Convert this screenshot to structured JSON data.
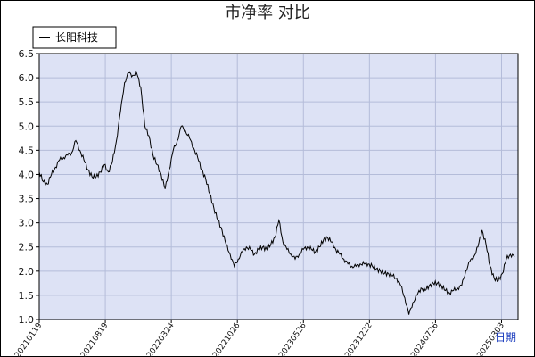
{
  "chart_data": {
    "type": "line",
    "title": "市净率  对比",
    "xlabel": "日期",
    "ylabel": "",
    "ylim": [
      1.0,
      6.5
    ],
    "y_ticks": [
      "1.0",
      "1.5",
      "2.0",
      "2.5",
      "3.0",
      "3.5",
      "4.0",
      "4.5",
      "5.0",
      "5.5",
      "6.0",
      "6.5"
    ],
    "x_ticks": [
      "20210119",
      "20210819",
      "20220324",
      "20221026",
      "20230526",
      "20231222",
      "20240726",
      "20250303"
    ],
    "grid": true,
    "legend_position": "top-left",
    "colors": {
      "plot_bg": "#dde2f5",
      "grid": "#b4bcd9",
      "line": "#000000",
      "frame": "#000000"
    },
    "series": [
      {
        "name": "长阳科技",
        "points": [
          [
            0,
            4.05
          ],
          [
            0.01,
            3.85
          ],
          [
            0.02,
            3.8
          ],
          [
            0.03,
            4.0
          ],
          [
            0.04,
            4.15
          ],
          [
            0.05,
            4.3
          ],
          [
            0.06,
            4.35
          ],
          [
            0.07,
            4.4
          ],
          [
            0.08,
            4.45
          ],
          [
            0.09,
            4.7
          ],
          [
            0.1,
            4.5
          ],
          [
            0.11,
            4.3
          ],
          [
            0.12,
            4.1
          ],
          [
            0.13,
            3.95
          ],
          [
            0.14,
            3.95
          ],
          [
            0.15,
            4.05
          ],
          [
            0.16,
            4.2
          ],
          [
            0.17,
            4.05
          ],
          [
            0.18,
            4.25
          ],
          [
            0.19,
            4.7
          ],
          [
            0.2,
            5.3
          ],
          [
            0.21,
            5.9
          ],
          [
            0.22,
            6.1
          ],
          [
            0.23,
            6.05
          ],
          [
            0.24,
            6.1
          ],
          [
            0.25,
            5.8
          ],
          [
            0.26,
            5.0
          ],
          [
            0.27,
            4.8
          ],
          [
            0.28,
            4.4
          ],
          [
            0.29,
            4.2
          ],
          [
            0.3,
            4.0
          ],
          [
            0.31,
            3.7
          ],
          [
            0.32,
            4.1
          ],
          [
            0.33,
            4.5
          ],
          [
            0.34,
            4.7
          ],
          [
            0.35,
            5.0
          ],
          [
            0.36,
            4.9
          ],
          [
            0.37,
            4.75
          ],
          [
            0.38,
            4.55
          ],
          [
            0.39,
            4.35
          ],
          [
            0.4,
            4.1
          ],
          [
            0.41,
            3.9
          ],
          [
            0.42,
            3.6
          ],
          [
            0.43,
            3.3
          ],
          [
            0.44,
            3.05
          ],
          [
            0.45,
            2.85
          ],
          [
            0.46,
            2.55
          ],
          [
            0.47,
            2.35
          ],
          [
            0.48,
            2.1
          ],
          [
            0.49,
            2.25
          ],
          [
            0.5,
            2.4
          ],
          [
            0.51,
            2.5
          ],
          [
            0.52,
            2.45
          ],
          [
            0.53,
            2.35
          ],
          [
            0.54,
            2.45
          ],
          [
            0.55,
            2.5
          ],
          [
            0.56,
            2.45
          ],
          [
            0.57,
            2.55
          ],
          [
            0.58,
            2.7
          ],
          [
            0.59,
            3.05
          ],
          [
            0.6,
            2.6
          ],
          [
            0.61,
            2.45
          ],
          [
            0.62,
            2.35
          ],
          [
            0.63,
            2.25
          ],
          [
            0.64,
            2.35
          ],
          [
            0.65,
            2.45
          ],
          [
            0.66,
            2.5
          ],
          [
            0.67,
            2.45
          ],
          [
            0.68,
            2.4
          ],
          [
            0.69,
            2.5
          ],
          [
            0.7,
            2.65
          ],
          [
            0.71,
            2.7
          ],
          [
            0.72,
            2.6
          ],
          [
            0.73,
            2.45
          ],
          [
            0.74,
            2.35
          ],
          [
            0.75,
            2.25
          ],
          [
            0.76,
            2.15
          ],
          [
            0.77,
            2.1
          ],
          [
            0.78,
            2.1
          ],
          [
            0.79,
            2.15
          ],
          [
            0.8,
            2.15
          ],
          [
            0.81,
            2.15
          ],
          [
            0.82,
            2.1
          ],
          [
            0.83,
            2.05
          ],
          [
            0.84,
            2.0
          ],
          [
            0.85,
            1.95
          ],
          [
            0.86,
            1.95
          ],
          [
            0.87,
            1.9
          ],
          [
            0.88,
            1.85
          ],
          [
            0.89,
            1.7
          ],
          [
            0.9,
            1.45
          ],
          [
            0.91,
            1.1
          ],
          [
            0.92,
            1.35
          ],
          [
            0.93,
            1.5
          ],
          [
            0.94,
            1.65
          ],
          [
            0.95,
            1.6
          ],
          [
            0.96,
            1.7
          ],
          [
            0.97,
            1.75
          ],
          [
            0.98,
            1.75
          ],
          [
            0.99,
            1.7
          ],
          [
            1.0,
            1.6
          ],
          [
            1.01,
            1.55
          ],
          [
            1.02,
            1.6
          ],
          [
            1.03,
            1.65
          ],
          [
            1.04,
            1.7
          ],
          [
            1.05,
            2.0
          ],
          [
            1.06,
            2.2
          ],
          [
            1.07,
            2.3
          ],
          [
            1.08,
            2.5
          ],
          [
            1.09,
            2.85
          ],
          [
            1.1,
            2.55
          ],
          [
            1.11,
            2.1
          ],
          [
            1.12,
            1.85
          ],
          [
            1.13,
            1.8
          ],
          [
            1.14,
            1.95
          ],
          [
            1.15,
            2.25
          ],
          [
            1.16,
            2.35
          ],
          [
            1.17,
            2.3
          ]
        ]
      }
    ]
  }
}
